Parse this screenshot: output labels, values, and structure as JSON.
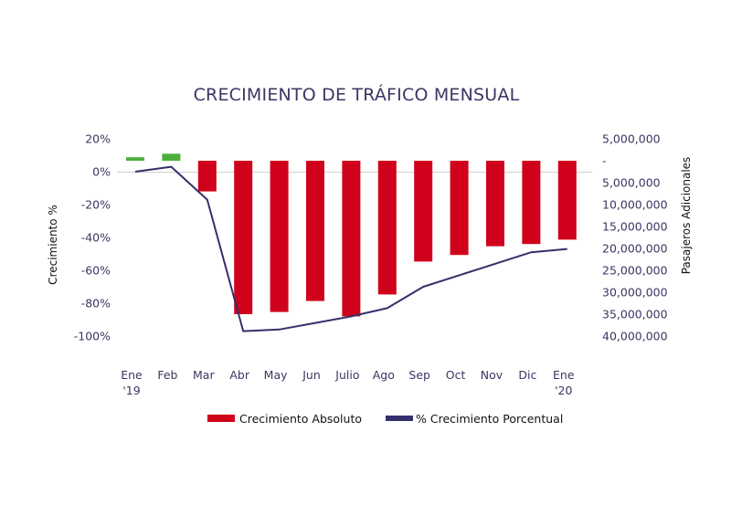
{
  "chart_data": {
    "type": "bar",
    "title": "CRECIMIENTO DE TRÁFICO MENSUAL",
    "categories": [
      [
        "Ene",
        "'19"
      ],
      [
        "Feb"
      ],
      [
        "Mar"
      ],
      [
        "Abr"
      ],
      [
        "May"
      ],
      [
        "Jun"
      ],
      [
        "Julio"
      ],
      [
        "Ago"
      ],
      [
        "Sep"
      ],
      [
        "Oct"
      ],
      [
        "Nov"
      ],
      [
        "Dic"
      ],
      [
        "Ene",
        "'20"
      ]
    ],
    "left_axis": {
      "label": "Crecimiento %",
      "ticks": [
        "20%",
        "0%",
        "-20%",
        "-40%",
        "-60%",
        "-80%",
        "-100%"
      ],
      "tick_values": [
        20,
        0,
        -20,
        -40,
        -60,
        -80,
        -100
      ],
      "range": [
        -100,
        20
      ]
    },
    "right_axis": {
      "label": "Pasajeros Adicionales",
      "ticks": [
        "5,000,000",
        "-",
        "5,000,000",
        "10,000,000",
        "15,000,000",
        "20,000,000",
        "25,000,000",
        "30,000,000",
        "35,000,000",
        "40,000,000"
      ],
      "tick_values": [
        5000000,
        0,
        -5000000,
        -10000000,
        -15000000,
        -20000000,
        -25000000,
        -30000000,
        -35000000,
        -40000000
      ],
      "range": [
        -40000000,
        5000000
      ]
    },
    "series": [
      {
        "name": "Crecimiento Absoluto",
        "type": "bar",
        "axis": "right",
        "color_negative": "#d0021b",
        "color_positive": "#4caf3c",
        "values": [
          800000,
          1600000,
          -7000000,
          -35000000,
          -34500000,
          -32000000,
          -35500000,
          -30500000,
          -23000000,
          -21500000,
          -19500000,
          -19000000,
          -18000000
        ]
      },
      {
        "name": "% Crecimiento Porcentual",
        "type": "line",
        "axis": "left",
        "color": "#35306b",
        "values": [
          0,
          3,
          -17,
          -97,
          -96,
          -92,
          -88,
          -83,
          -70,
          -63,
          -56,
          -49,
          -47
        ]
      }
    ],
    "legend": {
      "position": "bottom",
      "items": [
        {
          "label": "Crecimiento Absoluto",
          "color": "#d0021b"
        },
        {
          "label": "% Crecimiento Porcentual",
          "color": "#35306b"
        }
      ]
    }
  }
}
